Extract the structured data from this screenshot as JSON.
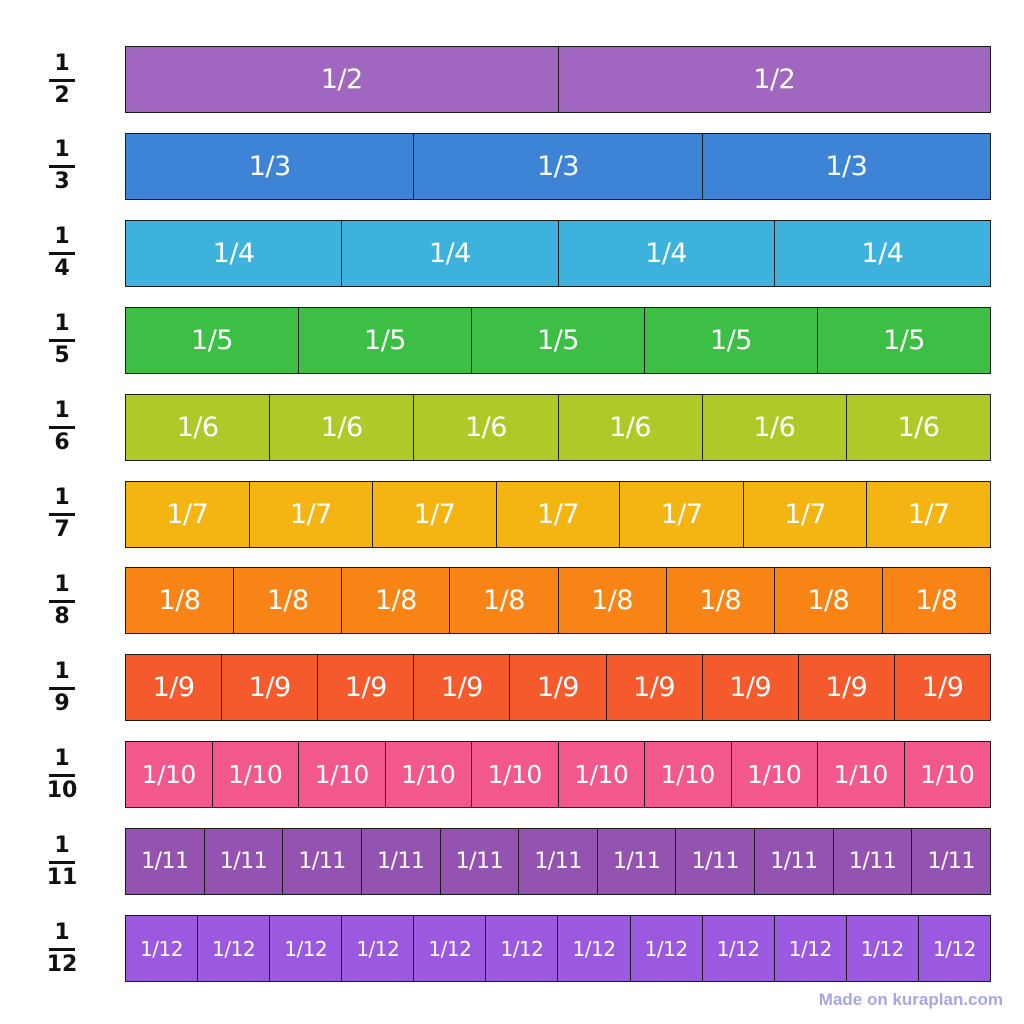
{
  "rows": [
    {
      "num": "1",
      "den": "2",
      "count": 2,
      "cell_label": "1/2",
      "color": "#A167C0"
    },
    {
      "num": "1",
      "den": "3",
      "count": 3,
      "cell_label": "1/3",
      "color": "#3D84D6"
    },
    {
      "num": "1",
      "den": "4",
      "count": 4,
      "cell_label": "1/4",
      "color": "#3CB2DD"
    },
    {
      "num": "1",
      "den": "5",
      "count": 5,
      "cell_label": "1/5",
      "color": "#3DBE45"
    },
    {
      "num": "1",
      "den": "6",
      "count": 6,
      "cell_label": "1/6",
      "color": "#AFCA28"
    },
    {
      "num": "1",
      "den": "7",
      "count": 7,
      "cell_label": "1/7",
      "color": "#F4B412"
    },
    {
      "num": "1",
      "den": "8",
      "count": 8,
      "cell_label": "1/8",
      "color": "#F78414"
    },
    {
      "num": "1",
      "den": "9",
      "count": 9,
      "cell_label": "1/9",
      "color": "#F45A2C"
    },
    {
      "num": "1",
      "den": "10",
      "count": 10,
      "cell_label": "1/10",
      "color": "#F2588B"
    },
    {
      "num": "1",
      "den": "11",
      "count": 11,
      "cell_label": "1/11",
      "color": "#9453B1"
    },
    {
      "num": "1",
      "den": "12",
      "count": 12,
      "cell_label": "1/12",
      "color": "#9A59DE"
    }
  ],
  "credit": "Made on kuraplan.com"
}
